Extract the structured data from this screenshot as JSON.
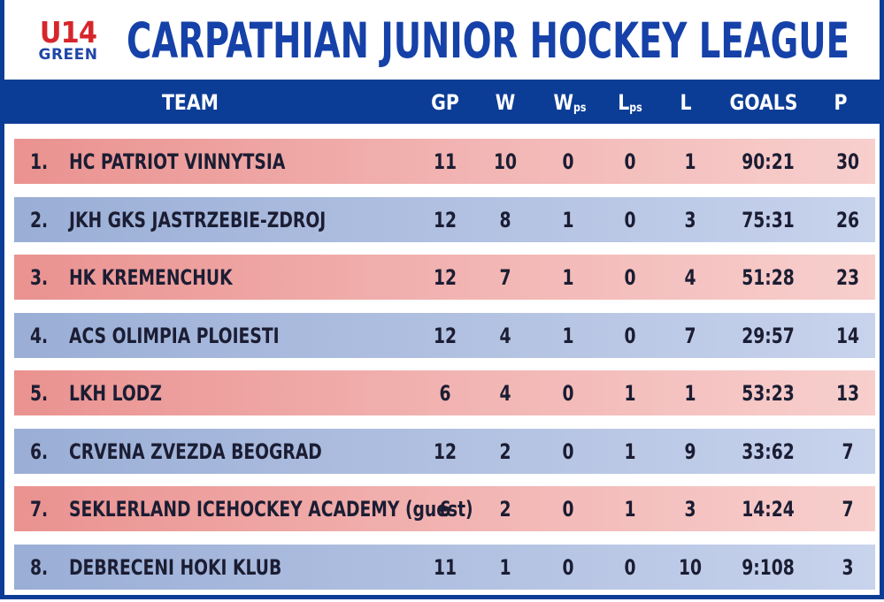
{
  "logo": {
    "top": "U14",
    "bottom": "GREEN"
  },
  "title": "CARPATHIAN JUNIOR HOCKEY LEAGUE",
  "header": {
    "team": "TEAM",
    "gp": "GP",
    "w": "W",
    "wps_main": "W",
    "wps_sub": "ps",
    "lps_main": "L",
    "lps_sub": "ps",
    "l": "L",
    "goals": "GOALS",
    "p": "P"
  },
  "colors": {
    "blue": "#0c3d96",
    "red_row": "#ea9290",
    "blue_row": "#9aaed6",
    "title": "#1541a8",
    "logo_red": "#d6262b"
  },
  "rows": [
    {
      "rank": "1.",
      "team": "HC PATRIOT VINNYTSIA",
      "gp": "11",
      "w": "10",
      "wps": "0",
      "lps": "0",
      "l": "1",
      "goals": "90:21",
      "p": "30"
    },
    {
      "rank": "2.",
      "team": "JKH GKS JASTRZEBIE-ZDROJ",
      "gp": "12",
      "w": "8",
      "wps": "1",
      "lps": "0",
      "l": "3",
      "goals": "75:31",
      "p": "26"
    },
    {
      "rank": "3.",
      "team": "HK KREMENCHUK",
      "gp": "12",
      "w": "7",
      "wps": "1",
      "lps": "0",
      "l": "4",
      "goals": "51:28",
      "p": "23"
    },
    {
      "rank": "4.",
      "team": "ACS OLIMPIA PLOIESTI",
      "gp": "12",
      "w": "4",
      "wps": "1",
      "lps": "0",
      "l": "7",
      "goals": "29:57",
      "p": "14"
    },
    {
      "rank": "5.",
      "team": "LKH LODZ",
      "gp": "6",
      "w": "4",
      "wps": "0",
      "lps": "1",
      "l": "1",
      "goals": "53:23",
      "p": "13"
    },
    {
      "rank": "6.",
      "team": "CRVENA ZVEZDA BEOGRAD",
      "gp": "12",
      "w": "2",
      "wps": "0",
      "lps": "1",
      "l": "9",
      "goals": "33:62",
      "p": "7"
    },
    {
      "rank": "7.",
      "team": "SEKLERLAND ICEHOCKEY ACADEMY (guest)",
      "gp": "6",
      "w": "2",
      "wps": "0",
      "lps": "1",
      "l": "3",
      "goals": "14:24",
      "p": "7"
    },
    {
      "rank": "8.",
      "team": "DEBRECENI HOKI KLUB",
      "gp": "11",
      "w": "1",
      "wps": "0",
      "lps": "0",
      "l": "10",
      "goals": "9:108",
      "p": "3"
    }
  ]
}
